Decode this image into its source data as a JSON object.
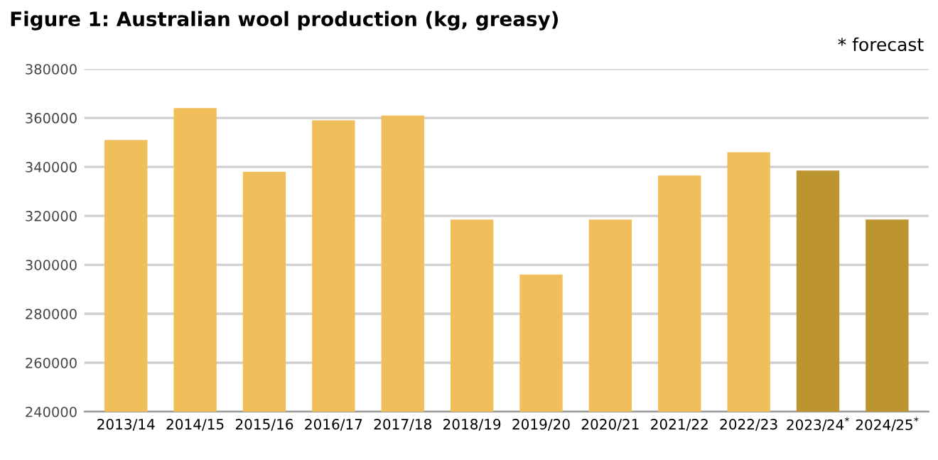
{
  "chart_data": {
    "type": "bar",
    "title": "Figure 1: Australian wool production (kg, greasy)",
    "annotations": [
      "* forecast"
    ],
    "categories": [
      "2013/14",
      "2014/15",
      "2015/16",
      "2016/17",
      "2017/18",
      "2018/19",
      "2019/20",
      "2020/21",
      "2021/22",
      "2022/23",
      "2023/24$^{*}$",
      "2024/25$^{*}$"
    ],
    "values": [
      351000,
      364000,
      338000,
      359000,
      361000,
      318500,
      296000,
      318500,
      336500,
      346000,
      338500,
      318500
    ],
    "colors": [
      "#f0be5a",
      "#f0be5a",
      "#f0be5a",
      "#f0be5a",
      "#f0be5a",
      "#f0be5a",
      "#f0be5a",
      "#f0be5a",
      "#f0be5a",
      "#f0be5a",
      "#bd9530",
      "#bd9530"
    ],
    "ylim": [
      240000,
      380000
    ],
    "yticks": [
      240000,
      260000,
      280000,
      300000,
      320000,
      340000,
      360000,
      380000
    ],
    "grid": "y"
  }
}
